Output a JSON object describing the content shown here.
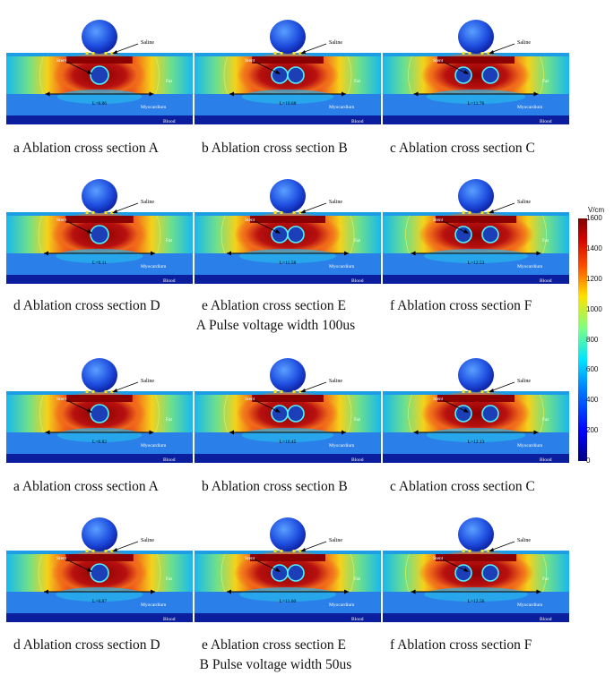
{
  "colorbar": {
    "unit": "V/cm",
    "ticks": [
      "1600",
      "1400",
      "1200",
      "1000",
      "800",
      "600",
      "400",
      "200",
      "0"
    ],
    "min": 0,
    "max": 1600
  },
  "panel_labels": {
    "saline": "Saline",
    "stent": "Stent",
    "fat": "Fat",
    "myocardium": "Myocardium",
    "blood": "Blood"
  },
  "groups": [
    {
      "title": "A Pulse voltage width 100us",
      "panels": [
        {
          "caption": "a Ablation cross section A",
          "L": "L=8.86",
          "stent": "single",
          "spread": 0.55
        },
        {
          "caption": "b Ablation cross section B",
          "L": "L=10.68",
          "stent": "double",
          "spread": 0.7
        },
        {
          "caption": "c Ablation cross section C",
          "L": "L=11.76",
          "stent": "split",
          "spread": 0.85
        },
        {
          "caption": "d Ablation cross section D",
          "L": "L=9.11",
          "stent": "single",
          "spread": 0.6
        },
        {
          "caption": "e Ablation cross section E",
          "L": "L=11.58",
          "stent": "double",
          "spread": 0.8
        },
        {
          "caption": "f Ablation cross section F",
          "L": "L=12.53",
          "stent": "split",
          "spread": 0.95
        }
      ]
    },
    {
      "title": "B Pulse voltage width 50us",
      "panels": [
        {
          "caption": "a Ablation cross section A",
          "L": "L=8.82",
          "stent": "single",
          "spread": 0.55
        },
        {
          "caption": "b Ablation cross section B",
          "L": "L=10.45",
          "stent": "double",
          "spread": 0.7
        },
        {
          "caption": "c Ablation cross section C",
          "L": "L=12.13",
          "stent": "split",
          "spread": 0.85
        },
        {
          "caption": "d Ablation cross section D",
          "L": "L=8.87",
          "stent": "single",
          "spread": 0.6
        },
        {
          "caption": "e Ablation cross section E",
          "L": "L=11.60",
          "stent": "double",
          "spread": 0.8
        },
        {
          "caption": "f Ablation cross section F",
          "L": "L=12.56",
          "stent": "split",
          "spread": 0.95
        }
      ]
    }
  ]
}
